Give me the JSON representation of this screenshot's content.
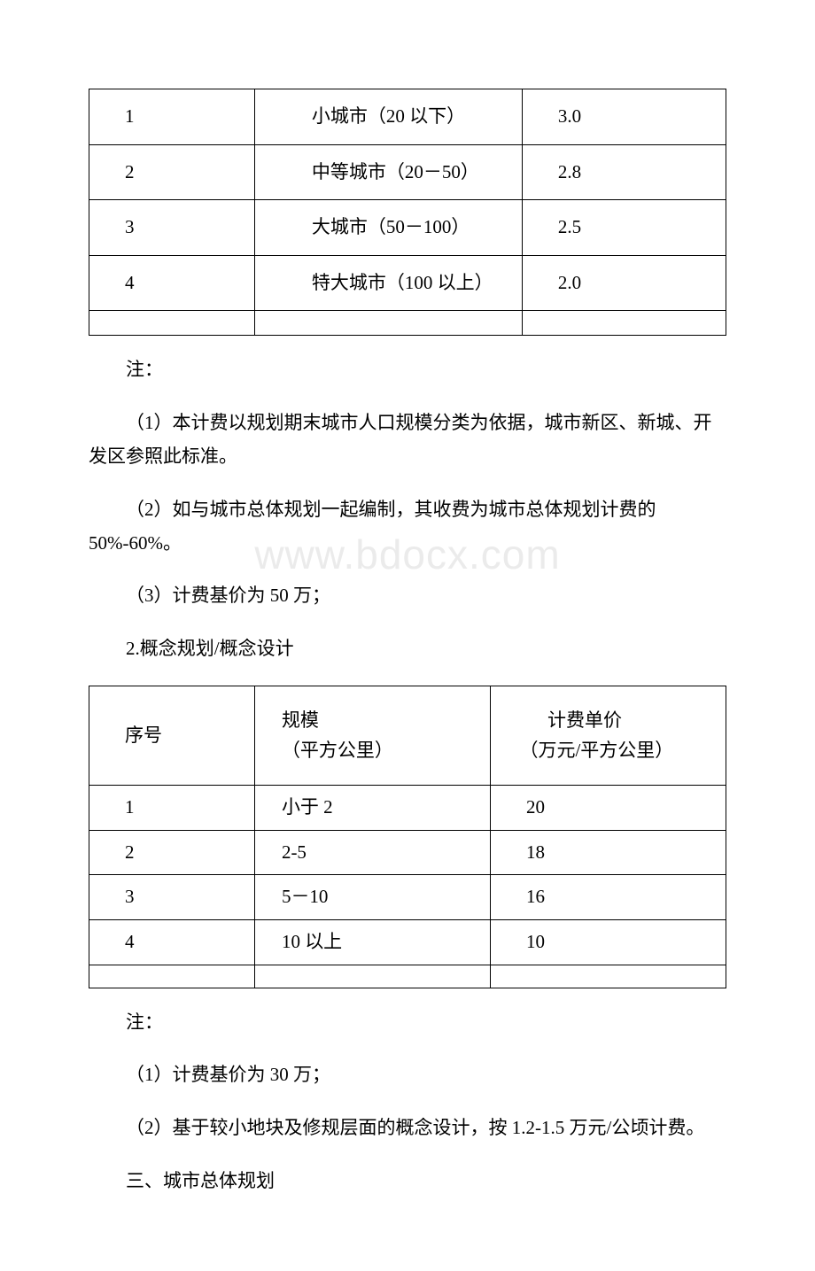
{
  "watermark": "www.bdocx.com",
  "table1": {
    "rows": [
      {
        "no": "1",
        "desc": "　　小城市（20 以下）",
        "val": "3.0"
      },
      {
        "no": "2",
        "desc": "　　中等城市（20－50）",
        "val": "2.8"
      },
      {
        "no": "3",
        "desc": "　　大城市（50－100）",
        "val": "2.5"
      },
      {
        "no": "4",
        "desc": "　　特大城市（100 以上）",
        "val": "2.0"
      }
    ]
  },
  "notes1": {
    "heading": "注：",
    "p1": "（1）本计费以规划期末城市人口规模分类为依据，城市新区、新城、开发区参照此标准。",
    "p2": "（2）如与城市总体规划一起编制，其收费为城市总体规划计费的 50%-60%。",
    "p3": "（3）计费基价为 50 万；"
  },
  "section2_title": "2.概念规划/概念设计",
  "table2": {
    "header": {
      "c1": "序号",
      "c2a": "规模",
      "c2b": "（平方公里）",
      "c3a": "　　计费单价",
      "c3b": "　（万元/平方公里）"
    },
    "rows": [
      {
        "no": "1",
        "scale": "小于 2",
        "price": "20"
      },
      {
        "no": "2",
        "scale": "2-5",
        "price": "18"
      },
      {
        "no": "3",
        "scale": "5－10",
        "price": "16"
      },
      {
        "no": "4",
        "scale": "10 以上",
        "price": "10"
      }
    ]
  },
  "notes2": {
    "heading": "注：",
    "p1": "（1）计费基价为 30 万；",
    "p2": "（2）基于较小地块及修规层面的概念设计，按 1.2-1.5 万元/公顷计费。"
  },
  "section3_title": "三、城市总体规划"
}
